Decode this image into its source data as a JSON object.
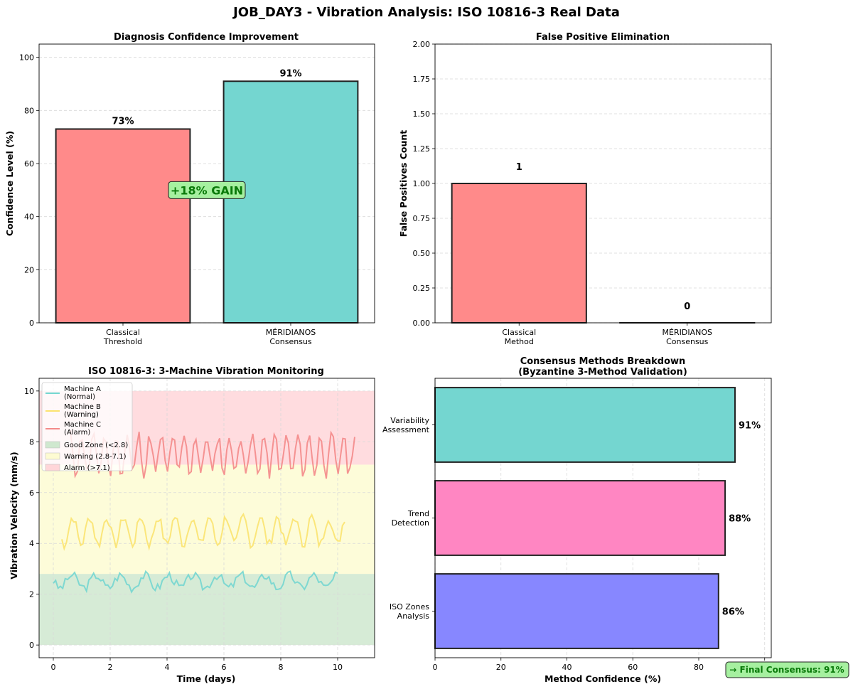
{
  "suptitle": "JOB_DAY3 - Vibration Analysis: ISO 10816-3 Real Data",
  "chart_data": [
    {
      "type": "bar",
      "title": "Diagnosis Confidence Improvement",
      "ylabel": "Confidence Level (%)",
      "xlabel": "",
      "categories": [
        "Classical\nThreshold",
        "MÉRIDIANOS\nConsensus"
      ],
      "values": [
        73,
        91
      ],
      "value_labels": [
        "73%",
        "91%"
      ],
      "colors": [
        "#ff8a8a",
        "#74d6d0"
      ],
      "ylim": [
        0,
        105
      ],
      "yticks": [
        0,
        20,
        40,
        60,
        80,
        100
      ],
      "grid": true,
      "annotation": {
        "text": "+18% GAIN",
        "x": 0.5,
        "y": 50,
        "color": "#0a7a0a",
        "box": "#a6f0a0"
      }
    },
    {
      "type": "bar",
      "title": "False Positive Elimination",
      "ylabel": "False Positives Count",
      "xlabel": "",
      "categories": [
        "Classical\nMethod",
        "MÉRIDIANOS\nConsensus"
      ],
      "values": [
        1,
        0
      ],
      "value_labels": [
        "1",
        "0"
      ],
      "colors": [
        "#ff8a8a",
        "#74d6d0"
      ],
      "ylim": [
        0,
        2.0
      ],
      "yticks": [
        0.0,
        0.25,
        0.5,
        0.75,
        1.0,
        1.25,
        1.5,
        1.75,
        2.0
      ],
      "ytick_labels": [
        "0.00",
        "0.25",
        "0.50",
        "0.75",
        "1.00",
        "1.25",
        "1.50",
        "1.75",
        "2.00"
      ],
      "grid": true
    },
    {
      "type": "line",
      "title": "ISO 10816-3: 3-Machine Vibration Monitoring",
      "xlabel": "Time (days)",
      "ylabel": "Vibration Velocity (mm/s)",
      "xlim": [
        -0.5,
        11.3
      ],
      "ylim": [
        -0.5,
        10.5
      ],
      "xticks": [
        0,
        2,
        4,
        6,
        8,
        10
      ],
      "yticks": [
        0,
        2,
        4,
        6,
        8,
        10
      ],
      "grid": true,
      "zones": [
        {
          "name": "Good Zone (<2.8)",
          "from": 0,
          "to": 2.8,
          "color": "#cfe8cf"
        },
        {
          "name": "Warning (2.8-7.1)",
          "from": 2.8,
          "to": 7.1,
          "color": "#fdfbd2"
        },
        {
          "name": "Alarm (>7.1)",
          "from": 7.1,
          "to": 10,
          "color": "#ffd6d9"
        }
      ],
      "series": [
        {
          "name": "Machine A\n(Normal)",
          "color": "#74d6d0",
          "base": 2.5,
          "amp": 0.25,
          "period": 0.85,
          "noise": 0.18,
          "x_start": 0,
          "x_end": 10,
          "seed": 3
        },
        {
          "name": "Machine B\n(Warning)",
          "color": "#fbe36f",
          "base": 4.5,
          "amp": 0.55,
          "period": 0.6,
          "noise": 0.2,
          "x_start": 0.3,
          "x_end": 10.25,
          "seed": 7
        },
        {
          "name": "Machine C\n(Alarm)",
          "color": "#f48a8a",
          "base": 7.5,
          "amp": 0.75,
          "period": 0.4,
          "noise": 0.25,
          "x_start": 0.6,
          "x_end": 10.6,
          "seed": 11
        }
      ],
      "legend": "upper left"
    },
    {
      "type": "barh",
      "title": "Consensus Methods Breakdown\n(Byzantine 3-Method Validation)",
      "xlabel": "Method Confidence (%)",
      "ylabel": "",
      "categories": [
        "ISO Zones\nAnalysis",
        "Trend\nDetection",
        "Variability\nAssessment"
      ],
      "values": [
        86,
        88,
        91
      ],
      "value_labels": [
        "86%",
        "88%",
        "91%"
      ],
      "colors": [
        "#8787ff",
        "#ff86c2",
        "#74d6d0"
      ],
      "xlim": [
        0,
        102
      ],
      "xticks": [
        0,
        20,
        40,
        60,
        80,
        100
      ],
      "grid": true,
      "annotation": {
        "text": "→ Final Consensus: 91%",
        "color": "#0a7a0a",
        "box": "#a6f0a0"
      }
    }
  ]
}
